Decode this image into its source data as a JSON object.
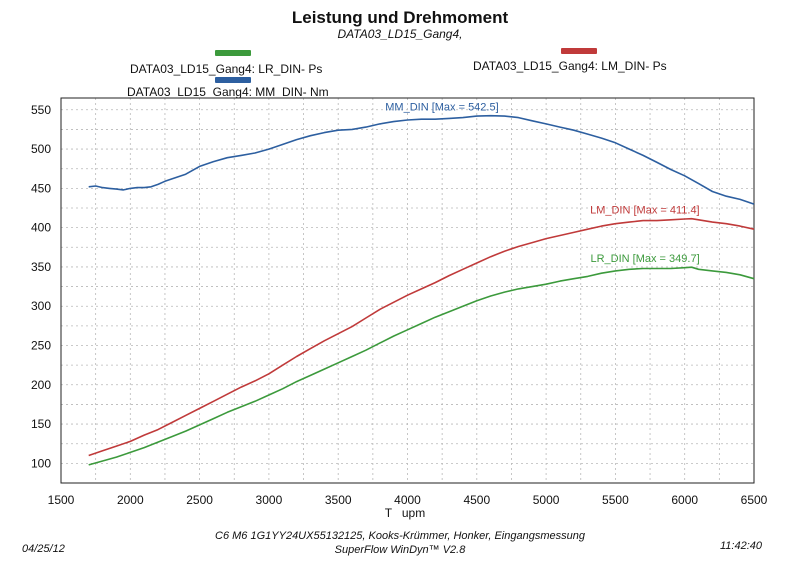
{
  "chart_data": {
    "type": "line",
    "title": "Leistung und Drehmoment",
    "subtitle": "DATA03_LD15_Gang4,",
    "xlabel": "T   upm",
    "ylabel": "",
    "xlim": [
      1500,
      6500
    ],
    "ylim": [
      75,
      565
    ],
    "xticks": [
      1500,
      2000,
      2500,
      3000,
      3500,
      4000,
      4500,
      5000,
      5500,
      6000,
      6500
    ],
    "yticks": [
      100,
      150,
      200,
      250,
      300,
      350,
      400,
      450,
      500,
      550
    ],
    "grid": true,
    "series": [
      {
        "name": "DATA03_LD15_Gang4: MM_DIN-  Nm",
        "color": "#2d5fa0",
        "label": "MM_DIN [Max = 542.5]",
        "x": [
          1700,
          1750,
          1800,
          1850,
          1900,
          1950,
          2000,
          2050,
          2100,
          2150,
          2200,
          2250,
          2300,
          2400,
          2500,
          2600,
          2700,
          2800,
          2900,
          3000,
          3100,
          3200,
          3300,
          3400,
          3500,
          3600,
          3700,
          3800,
          3900,
          4000,
          4100,
          4200,
          4300,
          4400,
          4500,
          4600,
          4700,
          4800,
          4900,
          5000,
          5100,
          5200,
          5300,
          5400,
          5500,
          5600,
          5700,
          5800,
          5900,
          6000,
          6100,
          6200,
          6300,
          6400,
          6500
        ],
        "y": [
          452,
          453,
          451,
          450,
          449,
          448,
          450,
          451,
          451,
          452,
          455,
          459,
          462,
          468,
          478,
          484,
          489,
          492,
          495,
          500,
          506,
          512,
          517,
          521,
          524,
          525,
          528,
          532,
          535,
          537,
          538,
          538,
          539,
          540,
          542,
          542.5,
          542,
          540,
          536,
          532,
          528,
          524,
          519,
          514,
          508,
          500,
          492,
          483,
          474,
          466,
          456,
          446,
          440,
          436,
          430
        ]
      },
      {
        "name": "DATA03_LD15_Gang4: LM_DIN-  Ps",
        "color": "#c03a3a",
        "label": "LM_DIN [Max = 411.4]",
        "x": [
          1700,
          1800,
          1900,
          2000,
          2100,
          2200,
          2300,
          2400,
          2500,
          2600,
          2700,
          2800,
          2900,
          3000,
          3100,
          3200,
          3300,
          3400,
          3500,
          3600,
          3700,
          3800,
          3900,
          4000,
          4100,
          4200,
          4300,
          4400,
          4500,
          4600,
          4700,
          4800,
          4900,
          5000,
          5100,
          5200,
          5300,
          5400,
          5500,
          5600,
          5700,
          5800,
          5900,
          6000,
          6050,
          6100,
          6200,
          6300,
          6400,
          6500
        ],
        "y": [
          110,
          116,
          122,
          128,
          136,
          143,
          152,
          161,
          170,
          179,
          188,
          197,
          205,
          214,
          225,
          236,
          246,
          256,
          265,
          274,
          285,
          296,
          305,
          314,
          322,
          330,
          339,
          347,
          355,
          363,
          370,
          376,
          381,
          386,
          390,
          394,
          398,
          402,
          405,
          407,
          409,
          409,
          410,
          411,
          411.4,
          410,
          407,
          405,
          402,
          398
        ]
      },
      {
        "name": "DATA03_LD15_Gang4: LR_DIN-  Ps",
        "color": "#3c9a3c",
        "label": "LR_DIN [Max = 349.7]",
        "x": [
          1700,
          1800,
          1900,
          2000,
          2100,
          2200,
          2300,
          2400,
          2500,
          2600,
          2700,
          2800,
          2900,
          3000,
          3100,
          3200,
          3300,
          3400,
          3500,
          3600,
          3700,
          3800,
          3900,
          4000,
          4100,
          4200,
          4300,
          4400,
          4500,
          4600,
          4700,
          4800,
          4900,
          5000,
          5100,
          5200,
          5300,
          5400,
          5500,
          5600,
          5700,
          5800,
          5900,
          6000,
          6050,
          6100,
          6200,
          6300,
          6400,
          6500
        ],
        "y": [
          98,
          103,
          108,
          114,
          120,
          127,
          134,
          141,
          149,
          157,
          165,
          172,
          179,
          187,
          195,
          204,
          212,
          220,
          228,
          236,
          244,
          253,
          262,
          270,
          278,
          286,
          293,
          300,
          307,
          313,
          318,
          322,
          325,
          328,
          332,
          335,
          338,
          342,
          345,
          347,
          348,
          348,
          348,
          349,
          349.7,
          347,
          345,
          343,
          340,
          335
        ]
      }
    ]
  },
  "footer": {
    "line1": "C6 M6  1G1YY24UX55132125, Kooks-Krümmer, Honker, Eingangsmessung",
    "line2": "SuperFlow WinDyn™  V2.8",
    "date": "04/25/12",
    "time": "11:42:40"
  }
}
